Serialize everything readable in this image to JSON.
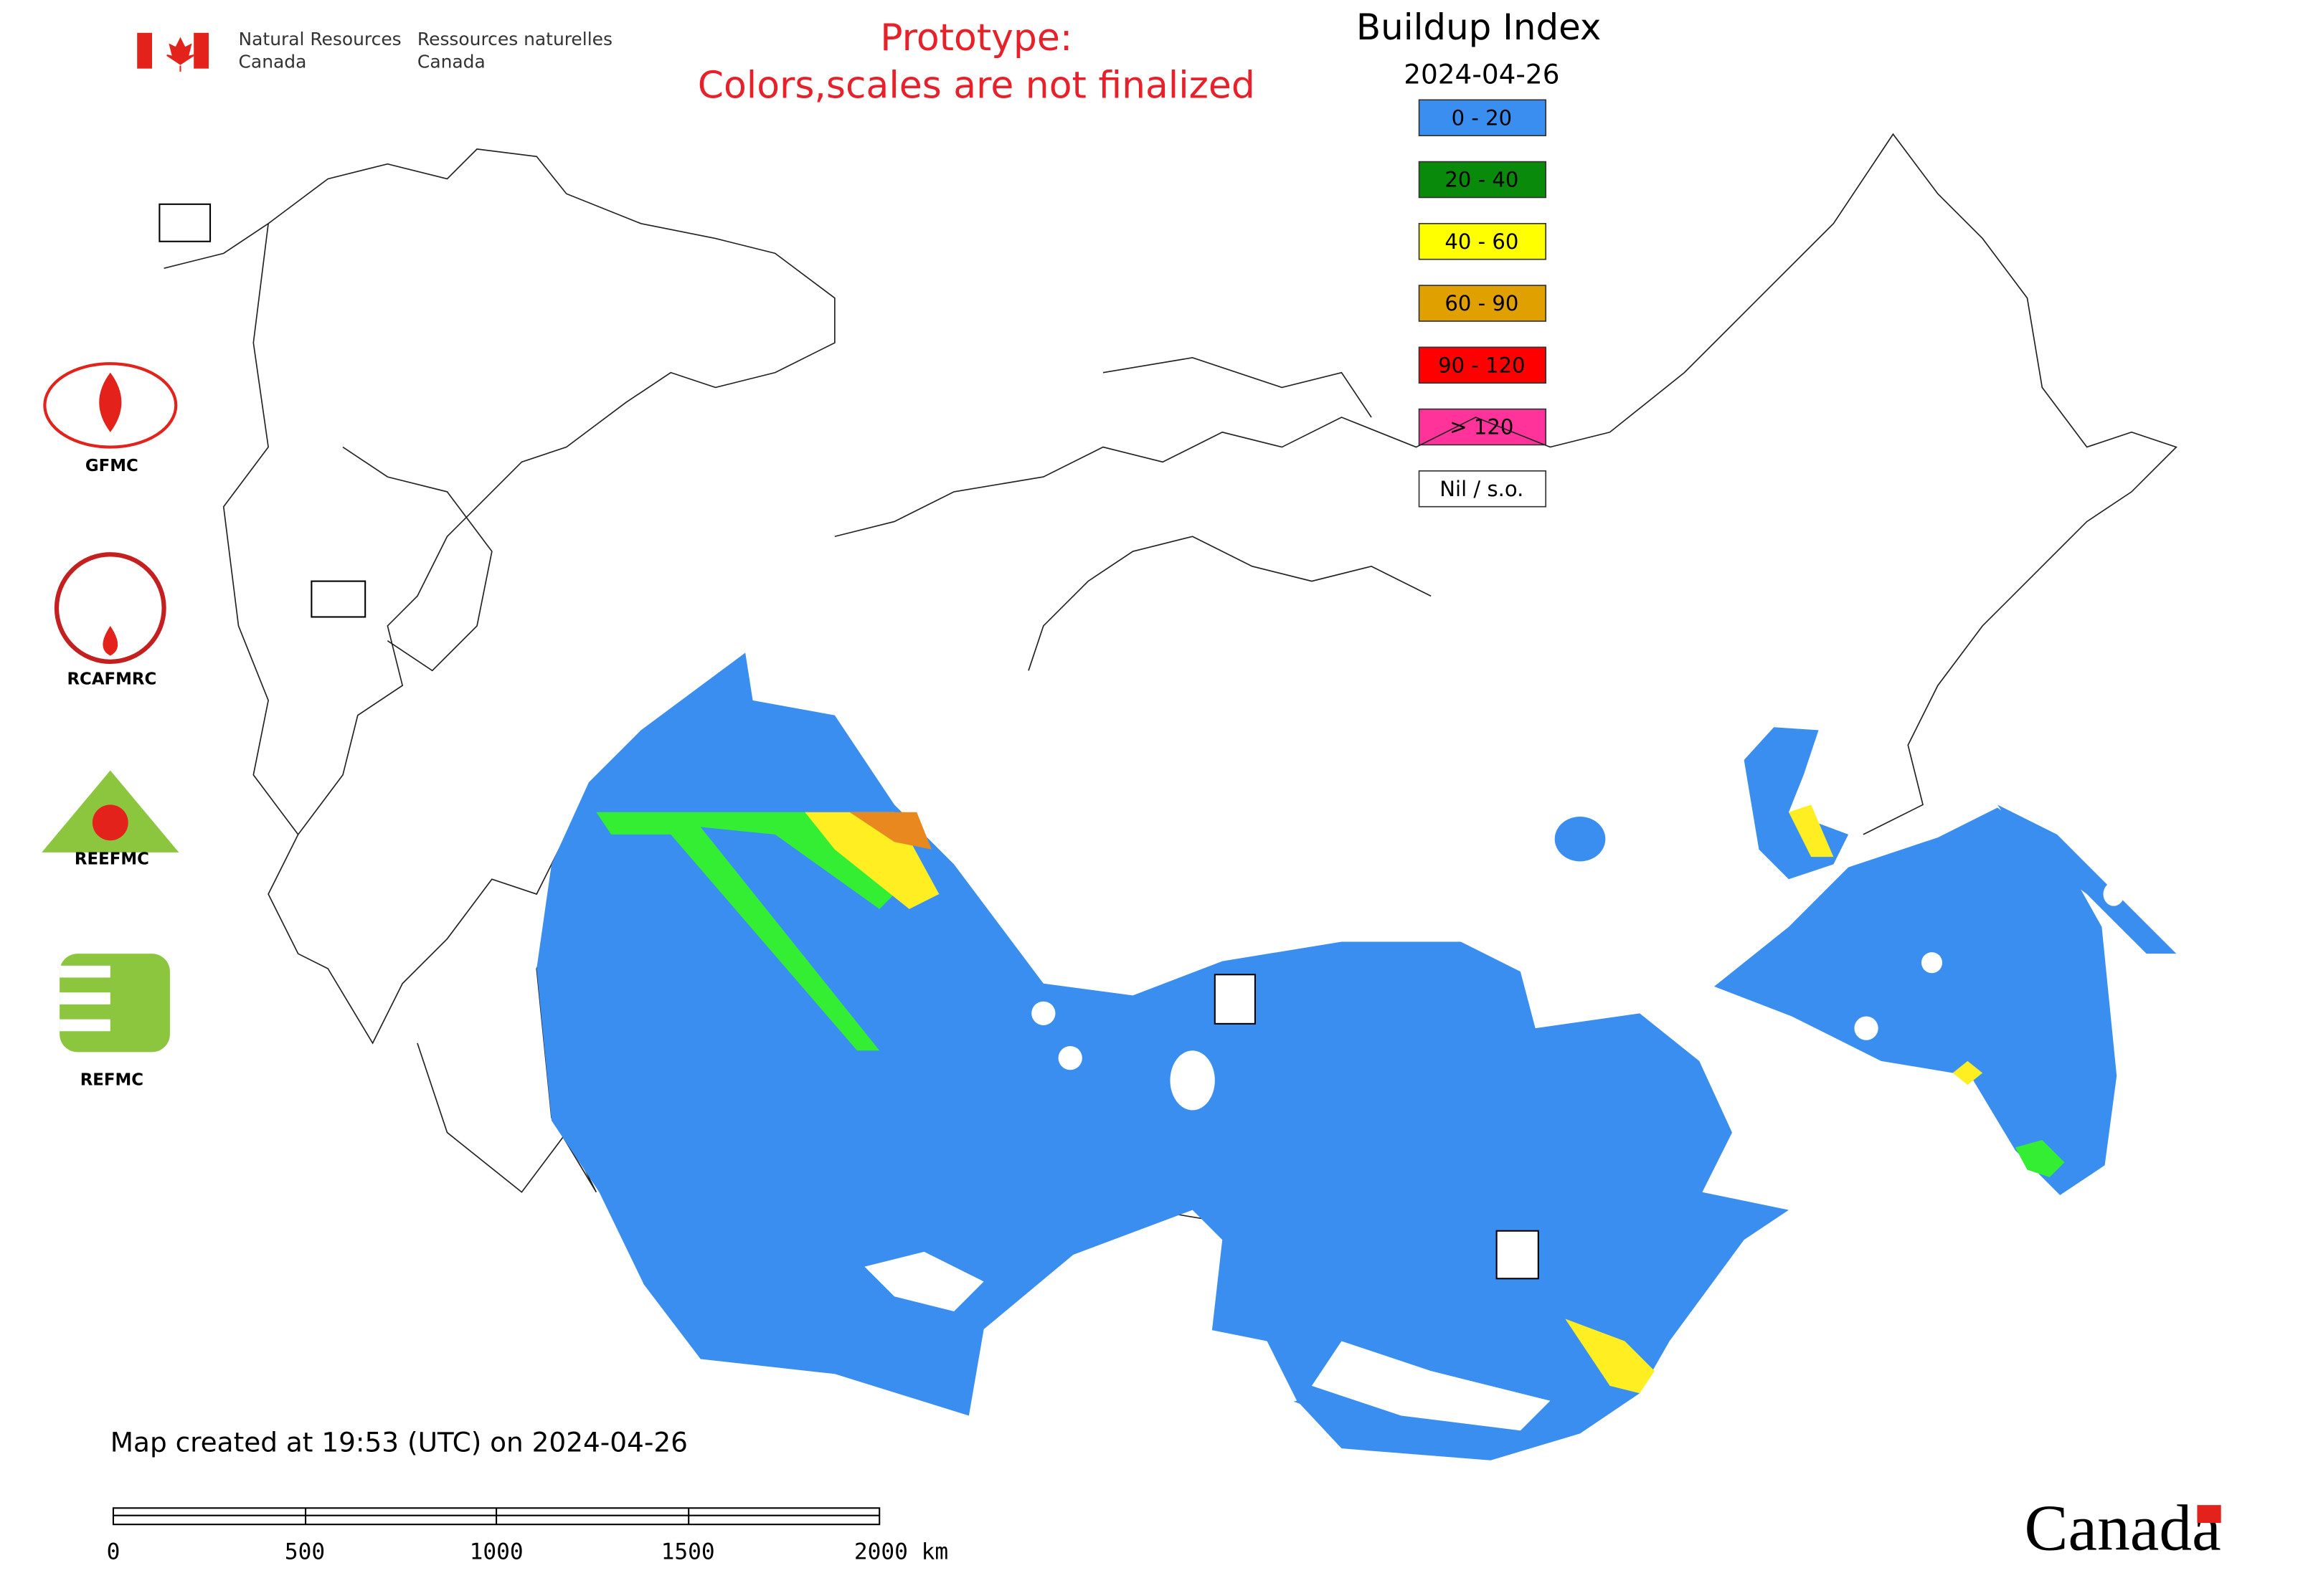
{
  "header": {
    "org_en_1": "Natural Resources",
    "org_en_2": "Canada",
    "org_fr_1": "Ressources naturelles",
    "org_fr_2": "Canada"
  },
  "notice": [
    "Prototype:",
    "Colors,scales are not finalized"
  ],
  "legend": {
    "title": "Buildup Index",
    "date": "2024-04-26",
    "items": [
      {
        "label": "0 - 20",
        "color": "#3a8ef0"
      },
      {
        "label": "20 - 40",
        "color": "#0a8a0a"
      },
      {
        "label": "40 - 60",
        "color": "#ffff00"
      },
      {
        "label": "60 - 90",
        "color": "#e0a000"
      },
      {
        "label": "90 - 120",
        "color": "#ff0000"
      },
      {
        "label": "> 120",
        "color": "#ff3399"
      },
      {
        "label": "Nil / s.o.",
        "color": "#ffffff"
      }
    ]
  },
  "logos": [
    "GFMC",
    "RCAFMRC",
    "REEFMC",
    "REFMC"
  ],
  "footer": {
    "created": "Map created at 19:53 (UTC) on 2024-04-26",
    "scale_ticks": [
      "0",
      "500",
      "1000",
      "1500",
      "2000 km"
    ],
    "wordmark": "Canada"
  }
}
